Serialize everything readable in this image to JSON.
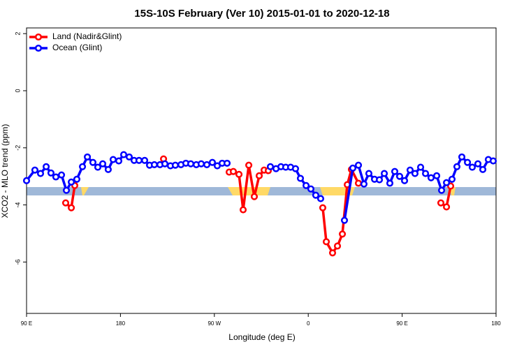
{
  "chart_data": {
    "type": "line",
    "title": "15S-10S February (Ver 10)   2015-01-01 to 2020-12-18",
    "x_label": "Longitude (deg E)",
    "y_label": "XCO2 - MLO trend (ppm)",
    "xlim": [
      90,
      540
    ],
    "ylim": [
      -7.8,
      2.2
    ],
    "xticks": [
      {
        "value": 90,
        "label": "90 E"
      },
      {
        "value": 180,
        "label": "180"
      },
      {
        "value": 270,
        "label": "90 W"
      },
      {
        "value": 360,
        "label": "0"
      },
      {
        "value": 450,
        "label": "90 E"
      },
      {
        "value": 540,
        "label": "180"
      }
    ],
    "yticks": [
      -6,
      -4,
      -2,
      0,
      2
    ],
    "legend": "top-left",
    "series": [
      {
        "name": "Land (Nadir&Glint)",
        "color": "#ff0000",
        "x": [
          127.5,
          132.9,
          136.2,
          null,
          221.3,
          null,
          284.2,
          288.2,
          293.6,
          297.6,
          303,
          308.3,
          313,
          317.7,
          321.7,
          null,
          373.9,
          377.3,
          383.3,
          388,
          392.7,
          397.4,
          401.4,
          408.1,
          null,
          487.1,
          492.5,
          496.5
        ],
        "values": [
          -3.93,
          -4.1,
          -3.32,
          null,
          -2.39,
          null,
          -2.85,
          -2.83,
          -2.93,
          -4.17,
          -2.61,
          -3.71,
          -2.98,
          -2.78,
          -2.8,
          null,
          -4.1,
          -5.29,
          -5.68,
          -5.44,
          -5.02,
          -3.29,
          -2.76,
          -3.24,
          null,
          -3.93,
          -4.07,
          -3.34
        ]
      },
      {
        "name": "Ocean (Glint)",
        "color": "#0000ff",
        "x": [
          90,
          98,
          103.4,
          108.8,
          113.4,
          118.1,
          123.5,
          128.2,
          132.9,
          138.2,
          143.6,
          148.3,
          153.6,
          158.3,
          163,
          168.3,
          173,
          178.4,
          183.1,
          188.4,
          193.1,
          197.8,
          203.2,
          207.9,
          212.5,
          217.9,
          222.6,
          227.9,
          232.6,
          238,
          242.7,
          247.4,
          252.7,
          257.4,
          262.8,
          268.1,
          272.8,
          277.5,
          282.2,
          null,
          323.7,
          329.1,
          333.8,
          338.4,
          343.1,
          347.8,
          352.5,
          357.9,
          362.5,
          367.2,
          371.9,
          null,
          394.7,
          402.7,
          408.1,
          413.4,
          418.1,
          423.5,
          428.2,
          432.9,
          438.2,
          442.9,
          447.6,
          452.3,
          457.6,
          462.3,
          467.7,
          472.4,
          477.7,
          483.1,
          487.8,
          492.5,
          497.8,
          502.5,
          507.2,
          512.6,
          517.2,
          522.6,
          527.3,
          532.6,
          537.3
        ],
        "values": [
          -3.15,
          -2.78,
          -2.9,
          -2.66,
          -2.88,
          -3.02,
          -2.95,
          -3.49,
          -3.2,
          -3.1,
          -2.66,
          -2.32,
          -2.51,
          -2.68,
          -2.56,
          -2.76,
          -2.41,
          -2.46,
          -2.24,
          -2.32,
          -2.44,
          -2.44,
          -2.44,
          -2.61,
          -2.59,
          -2.59,
          -2.56,
          -2.63,
          -2.61,
          -2.59,
          -2.54,
          -2.56,
          -2.59,
          -2.56,
          -2.59,
          -2.51,
          -2.63,
          -2.54,
          -2.54,
          null,
          -2.66,
          -2.73,
          -2.66,
          -2.68,
          -2.68,
          -2.73,
          -3.07,
          -3.32,
          -3.44,
          -3.66,
          -3.78,
          null,
          -4.54,
          -2.71,
          -2.61,
          -3.27,
          -2.9,
          -3.1,
          -3.12,
          -2.9,
          -3.24,
          -2.83,
          -3.0,
          -3.15,
          -2.78,
          -2.9,
          -2.68,
          -2.9,
          -3.05,
          -2.98,
          -3.49,
          -3.22,
          -3.1,
          -2.66,
          -2.32,
          -2.51,
          -2.68,
          -2.56,
          -2.76,
          -2.41,
          -2.46
        ]
      }
    ]
  }
}
